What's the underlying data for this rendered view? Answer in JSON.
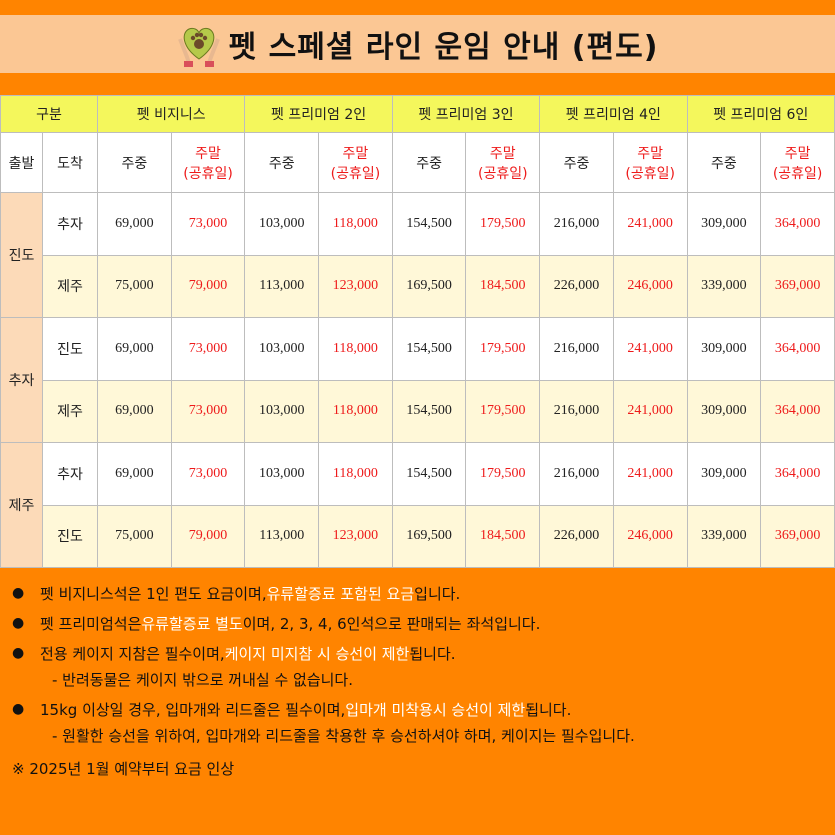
{
  "title": "펫 스페셜 라인 운임 안내 (편도)",
  "icon": "heart-paw-hands-icon",
  "colors": {
    "background": "#ff8400",
    "title_band": "#fbc794",
    "header": "#f4f75c",
    "weekend_text": "#ee1b1b",
    "highlight_text": "#ffffff"
  },
  "header": {
    "category": "구분",
    "classes": [
      "펫 비지니스",
      "펫 프리미엄 2인",
      "펫 프리미엄 3인",
      "펫 프리미엄 4인",
      "펫 프리미엄 6인"
    ]
  },
  "subheader": {
    "departure": "출발",
    "arrival": "도착",
    "weekday": "주중",
    "weekend": "주말",
    "holiday": "(공휴일)"
  },
  "groups": [
    {
      "from": "진도",
      "rows": [
        {
          "to": "추자",
          "prices": [
            "69,000",
            "73,000",
            "103,000",
            "118,000",
            "154,500",
            "179,500",
            "216,000",
            "241,000",
            "309,000",
            "364,000"
          ]
        },
        {
          "to": "제주",
          "prices": [
            "75,000",
            "79,000",
            "113,000",
            "123,000",
            "169,500",
            "184,500",
            "226,000",
            "246,000",
            "339,000",
            "369,000"
          ]
        }
      ]
    },
    {
      "from": "추자",
      "rows": [
        {
          "to": "진도",
          "prices": [
            "69,000",
            "73,000",
            "103,000",
            "118,000",
            "154,500",
            "179,500",
            "216,000",
            "241,000",
            "309,000",
            "364,000"
          ]
        },
        {
          "to": "제주",
          "prices": [
            "69,000",
            "73,000",
            "103,000",
            "118,000",
            "154,500",
            "179,500",
            "216,000",
            "241,000",
            "309,000",
            "364,000"
          ]
        }
      ]
    },
    {
      "from": "제주",
      "rows": [
        {
          "to": "추자",
          "prices": [
            "69,000",
            "73,000",
            "103,000",
            "118,000",
            "154,500",
            "179,500",
            "216,000",
            "241,000",
            "309,000",
            "364,000"
          ]
        },
        {
          "to": "진도",
          "prices": [
            "75,000",
            "79,000",
            "113,000",
            "123,000",
            "169,500",
            "184,500",
            "226,000",
            "246,000",
            "339,000",
            "369,000"
          ]
        }
      ]
    }
  ],
  "notes": [
    {
      "type": "bullet",
      "parts": [
        {
          "t": "펫 비지니스석은 1인 편도 요금이며, "
        },
        {
          "t": "유류할증료 포함된 요금",
          "hl": true
        },
        {
          "t": "입니다."
        }
      ]
    },
    {
      "type": "bullet",
      "parts": [
        {
          "t": "펫 프리미엄석은 "
        },
        {
          "t": "유류할증료 별도",
          "hl": true
        },
        {
          "t": "이며, 2, 3, 4, 6인석으로 판매되는 좌석입니다."
        }
      ]
    },
    {
      "type": "bullet",
      "parts": [
        {
          "t": "전용 케이지 지참은 필수이며, "
        },
        {
          "t": "케이지 미지참 시 승선이 제한",
          "hl": true
        },
        {
          "t": "됩니다."
        }
      ]
    },
    {
      "type": "sub",
      "parts": [
        {
          "t": "- 반려동물은 케이지 밖으로 꺼내실 수 없습니다."
        }
      ]
    },
    {
      "type": "bullet",
      "parts": [
        {
          "t": "15kg 이상일 경우, 입마개와 리드줄은 필수이며, "
        },
        {
          "t": "입마개 미착용시 승선이 제한",
          "hl": true
        },
        {
          "t": "됩니다."
        }
      ]
    },
    {
      "type": "sub",
      "parts": [
        {
          "t": "- 원활한 승선을 위하여, 입마개와 리드줄을 착용한 후 승선하셔야 하며, 케이지는 필수입니다."
        }
      ]
    }
  ],
  "footnote": "※ 2025년 1월 예약부터 요금 인상"
}
